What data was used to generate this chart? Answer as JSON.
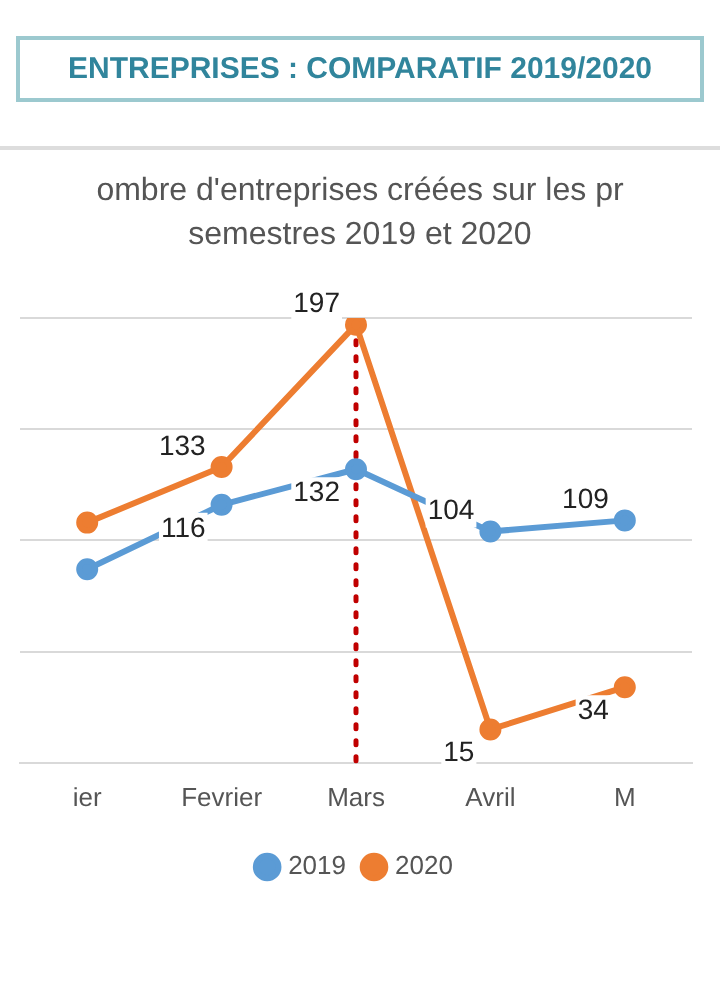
{
  "chart_data": {
    "type": "line",
    "title": "ENTREPRISES : COMPARATIF 2019/2020",
    "subtitle": "ombre d'entreprises créées sur les pr\nsemestres 2019 et 2020",
    "categories": [
      "ier",
      "Fevrier",
      "Mars",
      "Avril",
      "M"
    ],
    "series": [
      {
        "name": "2019",
        "color": "#5b9bd5",
        "values": [
          87,
          116,
          132,
          104,
          109
        ],
        "value_labels": [
          null,
          "116",
          "132",
          "104",
          "109"
        ]
      },
      {
        "name": "2020",
        "color": "#ed7d31",
        "values": [
          108,
          133,
          197,
          15,
          34
        ],
        "value_labels": [
          null,
          "133",
          "197",
          "15",
          "34"
        ]
      }
    ],
    "ylim": [
      0,
      200
    ],
    "yticks": [
      0,
      50,
      100,
      150,
      200
    ],
    "tick_labels": "x",
    "grid": "y",
    "legend": "bottom",
    "marker": "circle",
    "line_style": "solid",
    "ref_lines": [
      {
        "axis": "x",
        "value": "Mars",
        "color": "#c00000",
        "line_style": "dotted"
      }
    ]
  }
}
